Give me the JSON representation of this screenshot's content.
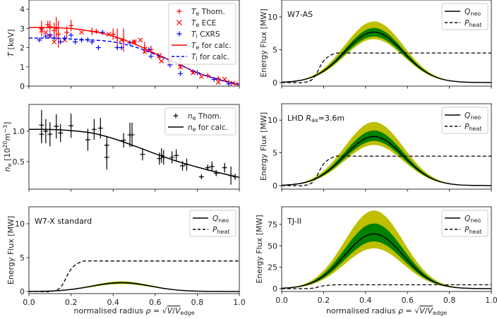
{
  "colors": {
    "te": "#ff0000",
    "ti": "#0000ff",
    "band_inner": "#008000",
    "band_outer": "#bfbf00",
    "line": "#000000"
  },
  "chart_data": [
    {
      "id": "temperature",
      "type": "scatter",
      "ylabel": {
        "sym": "T",
        "rest": " [keV]"
      },
      "xlim": [
        0,
        1
      ],
      "ylim": [
        0,
        4.48
      ],
      "yticks": [
        0,
        1,
        2,
        3,
        4
      ],
      "xticks": [
        0,
        0.2,
        0.4,
        0.6,
        0.8,
        1.0
      ],
      "show_xticklabels": false,
      "legend": {
        "placement": "top-right",
        "entries": [
          {
            "sym": "T",
            "sub": "e",
            "rest": " Thom.",
            "marker": "plus",
            "color": "#ff0000"
          },
          {
            "sym": "T",
            "sub": "e",
            "rest": " ECE",
            "marker": "x",
            "color": "#ff0000"
          },
          {
            "sym": "T",
            "sub": "i",
            "rest": " CXRS",
            "marker": "plus",
            "color": "#0000ff"
          },
          {
            "sym": "T",
            "sub": "e",
            "rest": " for calc.",
            "marker": "solid",
            "color": "#ff0000"
          },
          {
            "sym": "T",
            "sub": "i",
            "rest": " for calc.",
            "marker": "dashed",
            "color": "#0000ff"
          }
        ]
      },
      "te_thom": [
        [
          0.06,
          3.0,
          0.4
        ],
        [
          0.09,
          3.2,
          0.2
        ],
        [
          0.1,
          3.1,
          0.3
        ],
        [
          0.12,
          2.9,
          0.4
        ],
        [
          0.13,
          3.0,
          0.6
        ],
        [
          0.14,
          2.7,
          0.7
        ],
        [
          0.18,
          2.8,
          0.3
        ],
        [
          0.2,
          3.15,
          0.3
        ],
        [
          0.3,
          2.85,
          0.2
        ],
        [
          0.32,
          2.85,
          0.1
        ],
        [
          0.4,
          2.7,
          0.3
        ],
        [
          0.42,
          2.5,
          0.5
        ],
        [
          0.45,
          2.4,
          0.6
        ],
        [
          0.5,
          2.3,
          0.1
        ],
        [
          0.55,
          2.0,
          0.3
        ],
        [
          0.58,
          1.9,
          0.2
        ],
        [
          0.62,
          1.5,
          0.1
        ],
        [
          0.67,
          1.4,
          0.1
        ],
        [
          0.72,
          1.1,
          0.2
        ],
        [
          0.78,
          0.75,
          0.1
        ],
        [
          0.85,
          0.55,
          0.1
        ],
        [
          0.9,
          0.4,
          0.05
        ],
        [
          0.95,
          0.2,
          0.05
        ],
        [
          0.99,
          0.1,
          0.05
        ]
      ],
      "te_ece": [
        [
          0.06,
          2.9
        ],
        [
          0.08,
          2.8
        ],
        [
          0.1,
          2.6
        ],
        [
          0.12,
          2.3
        ],
        [
          0.17,
          2.4
        ],
        [
          0.25,
          2.8
        ],
        [
          0.38,
          2.7
        ],
        [
          0.44,
          2.4
        ],
        [
          0.5,
          2.3
        ],
        [
          0.53,
          2.4
        ],
        [
          0.55,
          1.8
        ],
        [
          0.62,
          1.6
        ],
        [
          0.63,
          1.3
        ],
        [
          0.67,
          1.2
        ],
        [
          0.72,
          1.0
        ],
        [
          0.78,
          0.7
        ],
        [
          0.82,
          0.5
        ],
        [
          0.9,
          0.2
        ],
        [
          0.93,
          0.35
        ],
        [
          0.97,
          0.15
        ]
      ],
      "ti_cxrs": [
        [
          0.05,
          2.4
        ],
        [
          0.08,
          2.6
        ],
        [
          0.1,
          2.65
        ],
        [
          0.12,
          2.5
        ],
        [
          0.15,
          2.3
        ],
        [
          0.17,
          2.5
        ],
        [
          0.2,
          2.65
        ],
        [
          0.22,
          2.3
        ],
        [
          0.25,
          2.4
        ],
        [
          0.28,
          2.4
        ],
        [
          0.3,
          2.3
        ],
        [
          0.35,
          2.8
        ],
        [
          0.33,
          2.0
        ],
        [
          0.42,
          2.0
        ],
        [
          0.44,
          2.0
        ],
        [
          0.48,
          2.25
        ],
        [
          0.57,
          1.9
        ],
        [
          0.58,
          1.55
        ],
        [
          0.67,
          1.1
        ],
        [
          0.72,
          1.4
        ],
        [
          0.72,
          0.65
        ],
        [
          0.8,
          0.7
        ],
        [
          0.88,
          0.35
        ],
        [
          0.95,
          0.12
        ]
      ],
      "fit_x": [
        0,
        0.1,
        0.2,
        0.3,
        0.4,
        0.5,
        0.6,
        0.7,
        0.8,
        0.9,
        1.0
      ],
      "te_fit": [
        3.05,
        3.05,
        3.0,
        2.85,
        2.6,
        2.2,
        1.7,
        1.2,
        0.7,
        0.35,
        0.08
      ],
      "ti_fit": [
        2.5,
        2.5,
        2.45,
        2.4,
        2.3,
        2.05,
        1.65,
        1.2,
        0.7,
        0.35,
        0.08
      ]
    },
    {
      "id": "density",
      "type": "scatter",
      "ylabel": {
        "sym": "n",
        "sub": "e",
        "rest": " [10",
        "sup": "20",
        "rest2": "m",
        "sup2": "−3",
        "rest3": "]"
      },
      "xlim": [
        0,
        1
      ],
      "ylim": [
        0.047,
        1.44
      ],
      "yticks": [
        0.5,
        1.0
      ],
      "xticks": [
        0,
        0.2,
        0.4,
        0.6,
        0.8,
        1.0
      ],
      "show_xticklabels": false,
      "legend": {
        "placement": "top-right",
        "entries": [
          {
            "sym": "n",
            "sub": "e",
            "rest": " Thom.",
            "marker": "plus",
            "color": "#000000"
          },
          {
            "sym": "n",
            "sub": "e",
            "rest": " for calc.",
            "marker": "solid",
            "color": "#000000"
          }
        ]
      },
      "ne_thom": [
        [
          0.06,
          1.1,
          0.25
        ],
        [
          0.06,
          0.95,
          0.15
        ],
        [
          0.08,
          1.0,
          0.2
        ],
        [
          0.1,
          0.95,
          0.2
        ],
        [
          0.13,
          1.08,
          0.2
        ],
        [
          0.15,
          0.97,
          0.15
        ],
        [
          0.2,
          1.09,
          0.2
        ],
        [
          0.28,
          0.86,
          0.18
        ],
        [
          0.31,
          1.03,
          0.17
        ],
        [
          0.34,
          1.05,
          0.17
        ],
        [
          0.37,
          0.77,
          0.15
        ],
        [
          0.37,
          0.57,
          0.2
        ],
        [
          0.45,
          0.85,
          0.12
        ],
        [
          0.48,
          0.94,
          0.2
        ],
        [
          0.49,
          0.94,
          0.2
        ],
        [
          0.54,
          0.62,
          0.1
        ],
        [
          0.62,
          0.55,
          0.1
        ],
        [
          0.63,
          0.6,
          0.12
        ],
        [
          0.64,
          0.57,
          0.12
        ],
        [
          0.68,
          0.57,
          0.1
        ],
        [
          0.7,
          0.6,
          0.1
        ],
        [
          0.73,
          0.43,
          0.08
        ],
        [
          0.75,
          0.45,
          0.1
        ],
        [
          0.82,
          0.25,
          0.02
        ],
        [
          0.85,
          0.4,
          0.05
        ],
        [
          0.87,
          0.42,
          0.08
        ],
        [
          0.89,
          0.31,
          0.05
        ],
        [
          0.93,
          0.4,
          0.08
        ],
        [
          0.96,
          0.27,
          0.15
        ],
        [
          0.98,
          0.25,
          0.05
        ]
      ],
      "fit_x": [
        0,
        0.1,
        0.2,
        0.3,
        0.4,
        0.5,
        0.6,
        0.7,
        0.8,
        0.9,
        1.0
      ],
      "ne_fit": [
        1.03,
        1.03,
        1.01,
        0.97,
        0.88,
        0.76,
        0.63,
        0.51,
        0.41,
        0.32,
        0.24
      ]
    },
    {
      "id": "w7x",
      "type": "line",
      "annotation": {
        "text": "W7-X standard"
      },
      "ylabel": {
        "rest": "Energy Flux [MW]"
      },
      "xlabel": true,
      "xlim": [
        0,
        1
      ],
      "ylim": [
        -0.31,
        12.5
      ],
      "yticks": [
        0,
        5,
        10
      ],
      "xticks": [
        0,
        0.2,
        0.4,
        0.6,
        0.8,
        1.0
      ],
      "show_xticklabels": true,
      "q_neo": [
        0.01,
        0.03,
        0.07,
        0.15,
        0.3,
        0.52,
        0.79,
        1.06,
        1.25,
        1.3,
        1.19,
        0.95,
        0.68,
        0.42,
        0.23,
        0.11,
        0.05,
        0.02,
        0.01,
        0,
        0
      ],
      "band_inner_peak": [
        1.2,
        1.4
      ],
      "band_outer_peak": [
        1.1,
        1.5
      ],
      "q_peak": 1.3
    },
    {
      "id": "w7as",
      "type": "line",
      "annotation": {
        "text": "W7-AS"
      },
      "ylabel": {
        "rest": "Energy Flux [MW]"
      },
      "xlim": [
        0,
        1
      ],
      "ylim": [
        -0.54,
        12.58
      ],
      "yticks": [
        0,
        5,
        10
      ],
      "xticks": [
        0,
        0.2,
        0.4,
        0.6,
        0.8,
        1.0
      ],
      "show_xticklabels": false,
      "q_neo": [
        0.05,
        0.16,
        0.4,
        0.9,
        1.77,
        3.06,
        4.67,
        6.26,
        7.39,
        7.68,
        7.02,
        5.65,
        4.0,
        2.5,
        1.37,
        0.66,
        0.28,
        0.11,
        0.04,
        0.02,
        0
      ],
      "band_inner_peak": [
        7.0,
        8.3
      ],
      "band_outer_peak": [
        6.6,
        9.3
      ],
      "q_peak": 7.68
    },
    {
      "id": "lhd",
      "type": "line",
      "annotation": {
        "text": "LHD ",
        "sym": "R",
        "sub": "ax",
        "rest": "=3.6m"
      },
      "ylabel": {
        "rest": "Energy Flux [MW]"
      },
      "xlim": [
        0,
        1
      ],
      "ylim": [
        -0.54,
        12.5
      ],
      "yticks": [
        0,
        5,
        10
      ],
      "xticks": [
        0,
        0.2,
        0.4,
        0.6,
        0.8,
        1.0
      ],
      "show_xticklabels": false,
      "q_neo": [
        0.05,
        0.16,
        0.39,
        0.88,
        1.73,
        2.99,
        4.55,
        6.1,
        7.2,
        7.48,
        6.84,
        5.51,
        3.9,
        2.44,
        1.34,
        0.65,
        0.28,
        0.1,
        0.04,
        0.02,
        0
      ],
      "band_inner_peak": [
        6.8,
        8.4
      ],
      "band_outer_peak": [
        6.2,
        9.7
      ],
      "q_peak": 7.48
    },
    {
      "id": "tj2",
      "type": "line",
      "annotation": {
        "text": "TJ-II"
      },
      "ylabel": {
        "rest": "Energy Flux [MW]"
      },
      "xlabel": true,
      "xlim": [
        0,
        1
      ],
      "ylim": [
        -3.3,
        95.6
      ],
      "yticks": [
        0,
        25,
        50,
        75
      ],
      "xticks": [
        0,
        0.2,
        0.4,
        0.6,
        0.8,
        1.0
      ],
      "show_xticklabels": true,
      "q_neo": [
        0.45,
        1.34,
        3.33,
        7.49,
        14.7,
        25.5,
        38.8,
        52.0,
        61.4,
        63.8,
        58.4,
        47.0,
        33.3,
        20.8,
        11.4,
        5.5,
        2.4,
        0.9,
        0.3,
        0.1,
        0
      ],
      "band_inner_peak": [
        55,
        76
      ],
      "band_outer_peak": [
        47,
        91
      ],
      "q_peak": 63.8
    }
  ],
  "flux_x": [
    0,
    0.05,
    0.1,
    0.15,
    0.2,
    0.25,
    0.3,
    0.35,
    0.4,
    0.45,
    0.5,
    0.55,
    0.6,
    0.65,
    0.7,
    0.75,
    0.8,
    0.85,
    0.9,
    0.95,
    1.0
  ],
  "p_heat": [
    0,
    0,
    0,
    0.6,
    3.3,
    4.4,
    4.5,
    4.5,
    4.5,
    4.5,
    4.5,
    4.5,
    4.5,
    4.5,
    4.5,
    4.5,
    4.5,
    4.5,
    4.5,
    4.5,
    4.5
  ],
  "flux_legend": [
    {
      "sym": "Q",
      "sub": "neo",
      "marker": "solid"
    },
    {
      "sym": "P",
      "sub": "heat",
      "marker": "dashed"
    }
  ],
  "xlabel": {
    "text": "normalised radius ",
    "sym": "ρ",
    "eq": " = ",
    "sqrt": "√",
    "v": "V",
    "slash": "/",
    "v2": "V",
    "sub": "edge"
  }
}
